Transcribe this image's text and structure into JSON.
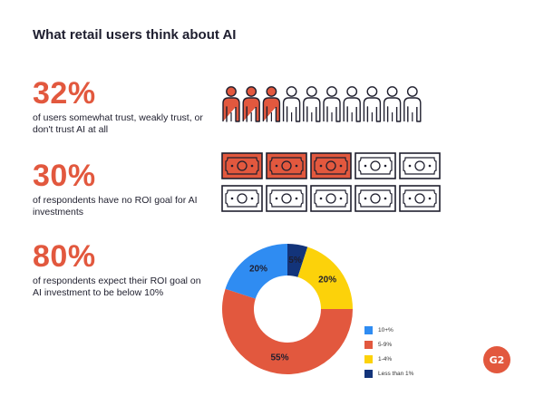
{
  "title": "What retail users think about AI",
  "stats": [
    {
      "value": "32%",
      "text": "of users somewhat trust, weakly trust, or don't trust AI at all"
    },
    {
      "value": "30%",
      "text": "of respondents have no ROI goal for AI investments"
    },
    {
      "value": "80%",
      "text": "of respondents expect their ROI goal on AI investment to be below 10%"
    }
  ],
  "icons": {
    "person": "person-icon",
    "money": "banknote-icon",
    "logo": "g2-logo"
  },
  "colors": {
    "accent": "#e2583e",
    "outline": "#1f1f2e",
    "blue": "#2f8cf2",
    "orange": "#e2583e",
    "yellow": "#fcd20a",
    "navy": "#13347a"
  },
  "logo_text": "G2",
  "chart_data": [
    {
      "type": "pictograph",
      "icon": "person",
      "total": 10,
      "highlighted": 3
    },
    {
      "type": "pictograph",
      "icon": "banknote",
      "total": 10,
      "highlighted": 3
    },
    {
      "type": "pie",
      "donut": true,
      "categories": [
        "10+%",
        "5-9%",
        "1-4%",
        "Less than 1%"
      ],
      "values": [
        20,
        55,
        20,
        5
      ],
      "labels": [
        "20%",
        "55%",
        "20%",
        "5%"
      ],
      "colors": [
        "#2f8cf2",
        "#e2583e",
        "#fcd20a",
        "#13347a"
      ],
      "legend_position": "right"
    }
  ]
}
